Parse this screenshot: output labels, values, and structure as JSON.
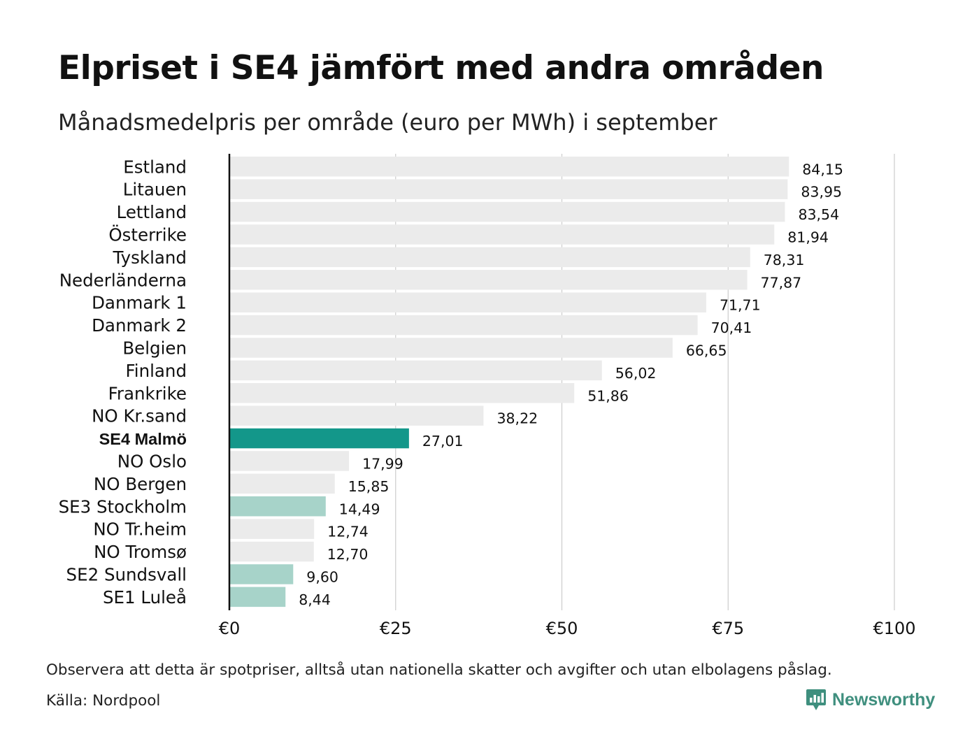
{
  "header": {
    "title": "Elpriset i SE4 jämfört med andra områden",
    "subtitle": "Månadsmedelpris per område (euro per MWh) i september"
  },
  "footer": {
    "note": "Observera att detta är spotpriser, alltså utan nationella skatter och avgifter och utan elbolagens påslag.",
    "source": "Källa: Nordpool",
    "brand": "Newsworthy",
    "brand_icon": "bar-chart-speech-bubble-icon"
  },
  "colors": {
    "highlight": "#13978a",
    "swedish": "#a7d3c9",
    "default": "#ebebeb",
    "axis": "#111111",
    "grid": "#cccccc",
    "brand": "#3f8f7e"
  },
  "chart_data": {
    "type": "bar",
    "orientation": "horizontal",
    "categories": [
      "Estland",
      "Litauen",
      "Lettland",
      "Österrike",
      "Tyskland",
      "Nederländerna",
      "Danmark 1",
      "Danmark 2",
      "Belgien",
      "Finland",
      "Frankrike",
      "NO Kr.sand",
      "SE4 Malmö",
      "NO Oslo",
      "NO Bergen",
      "SE3 Stockholm",
      "NO Tr.heim",
      "NO Tromsø",
      "SE2 Sundsvall",
      "SE1 Luleå"
    ],
    "values": [
      84.15,
      83.95,
      83.54,
      81.94,
      78.31,
      77.87,
      71.71,
      70.41,
      66.65,
      56.02,
      51.86,
      38.22,
      27.01,
      17.99,
      15.85,
      14.49,
      12.74,
      12.7,
      9.6,
      8.44
    ],
    "value_labels": [
      "84,15",
      "83,95",
      "83,54",
      "81,94",
      "78,31",
      "77,87",
      "71,71",
      "70,41",
      "66,65",
      "56,02",
      "51,86",
      "38,22",
      "27,01",
      "17,99",
      "15,85",
      "14,49",
      "12,74",
      "12,70",
      "9,60",
      "8,44"
    ],
    "bar_groups": [
      "default",
      "default",
      "default",
      "default",
      "default",
      "default",
      "default",
      "default",
      "default",
      "default",
      "default",
      "default",
      "highlight",
      "default",
      "default",
      "swedish",
      "default",
      "default",
      "swedish",
      "swedish"
    ],
    "highlighted_category": "SE4 Malmö",
    "xlim": [
      0,
      100
    ],
    "xticks": [
      0,
      25,
      50,
      75,
      100
    ],
    "xtick_labels": [
      "€0",
      "€25",
      "€50",
      "€75",
      "€100"
    ],
    "grid": true,
    "title": "Elpriset i SE4 jämfört med andra områden",
    "subtitle": "Månadsmedelpris per område (euro per MWh) i september"
  }
}
